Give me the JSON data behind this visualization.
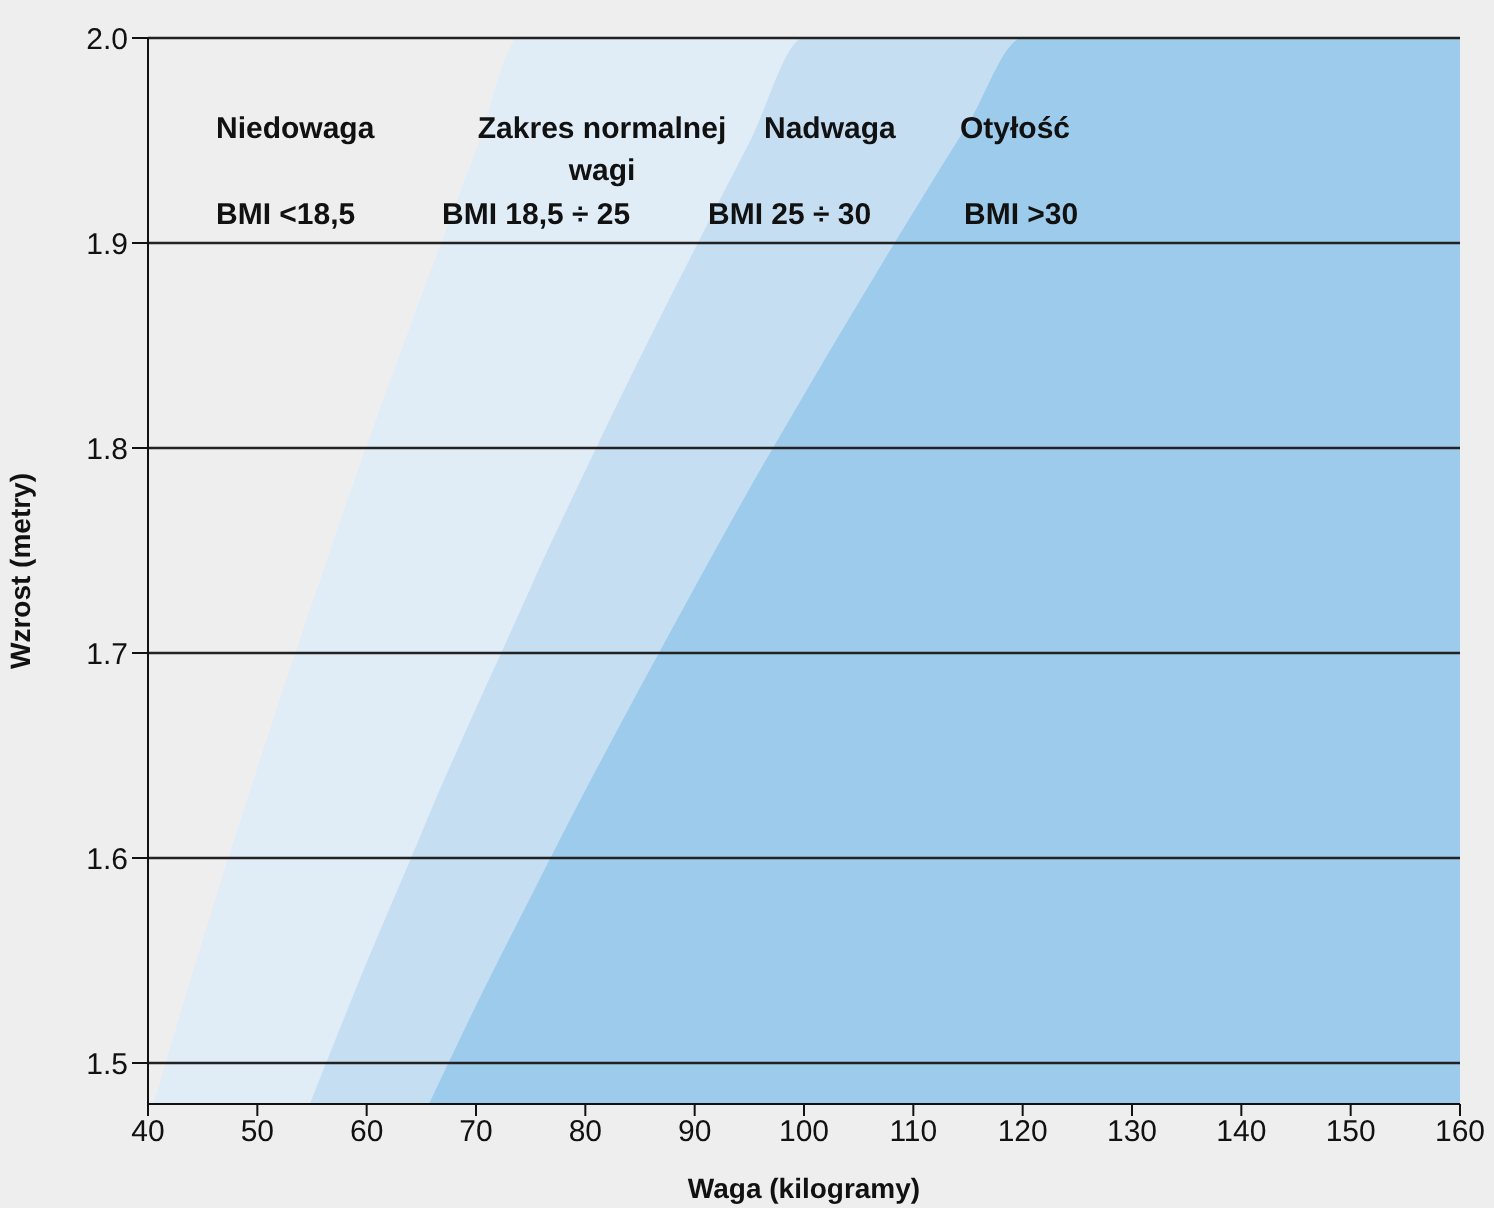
{
  "chart_data": {
    "type": "area",
    "xlabel": "Waga (kilogramy)",
    "ylabel": "Wzrost (metry)",
    "xlim": [
      40,
      160
    ],
    "xticks": [
      40,
      50,
      60,
      70,
      80,
      90,
      100,
      110,
      120,
      130,
      140,
      150,
      160
    ],
    "ylim": [
      1.48,
      2.0
    ],
    "yticks": [
      1.5,
      1.6,
      1.7,
      1.8,
      1.9,
      {
        "value": 2.0,
        "label": "2.0"
      }
    ],
    "grid": "y",
    "series": [
      {
        "color": "#e0edf7",
        "x": [
          40.5,
          45,
          50,
          54.8,
          60,
          65,
          70,
          74,
          75,
          80,
          85,
          90,
          95,
          100
        ],
        "values": [
          1.48,
          1.56,
          1.644,
          1.721,
          1.801,
          1.874,
          1.945,
          2.0,
          2.0,
          2.0,
          2.0,
          2.0,
          2.0,
          2.0
        ]
      },
      {
        "color": "#c6def2",
        "x": [
          54.8,
          60,
          65,
          65.7,
          70,
          74,
          75,
          80,
          85,
          90,
          95,
          100,
          105,
          110,
          115,
          120
        ],
        "values": [
          1.48,
          1.549,
          1.612,
          1.621,
          1.673,
          1.72,
          1.732,
          1.789,
          1.844,
          1.897,
          1.949,
          2.0,
          2.0,
          2.0,
          2.0,
          2.0
        ]
      },
      {
        "color": "#9dcbeb",
        "x": [
          65.7,
          70,
          75,
          80,
          85,
          90,
          95,
          100,
          105,
          110,
          115,
          120,
          160
        ],
        "values": [
          1.48,
          1.528,
          1.581,
          1.633,
          1.683,
          1.732,
          1.78,
          1.826,
          1.871,
          1.915,
          1.958,
          2.0,
          2.0
        ]
      }
    ],
    "annotations": [
      "Niedowaga",
      "Zakres normalnej wagi",
      "Nadwaga",
      "Otyłość",
      "BMI <18,5",
      "BMI 18,5 ÷ 25",
      "BMI 25 ÷ 30",
      "BMI >30"
    ]
  }
}
